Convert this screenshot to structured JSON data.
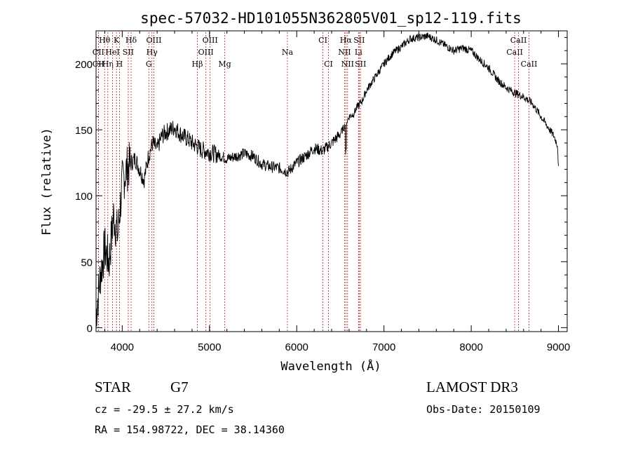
{
  "chart_data": {
    "type": "line",
    "title": "spec-57032-HD101055N362805V01_sp12-119.fits",
    "xlabel": "Wavelength (Å)",
    "ylabel": "Flux (relative)",
    "xlim": [
      3700,
      9100
    ],
    "ylim": [
      -3,
      225
    ],
    "xticks": [
      4000,
      5000,
      6000,
      7000,
      8000,
      9000
    ],
    "yticks": [
      0,
      50,
      100,
      150,
      200
    ],
    "series": [
      {
        "name": "flux",
        "color": "#000000",
        "x": [
          3700,
          3750,
          3800,
          3850,
          3900,
          3950,
          4000,
          4050,
          4100,
          4150,
          4200,
          4250,
          4300,
          4350,
          4400,
          4450,
          4500,
          4550,
          4600,
          4650,
          4700,
          4750,
          4800,
          4850,
          4900,
          4950,
          5000,
          5100,
          5200,
          5300,
          5400,
          5500,
          5600,
          5700,
          5800,
          5900,
          6000,
          6100,
          6200,
          6300,
          6400,
          6500,
          6550,
          6600,
          6650,
          6700,
          6750,
          6800,
          6900,
          7000,
          7100,
          7200,
          7300,
          7400,
          7500,
          7600,
          7700,
          7800,
          7900,
          8000,
          8100,
          8200,
          8300,
          8400,
          8500,
          8600,
          8700,
          8800,
          8900,
          8950,
          8990,
          9000
        ],
        "values": [
          10,
          40,
          60,
          50,
          85,
          70,
          110,
          120,
          125,
          128,
          120,
          112,
          130,
          140,
          135,
          145,
          148,
          150,
          152,
          148,
          145,
          143,
          140,
          138,
          135,
          134,
          133,
          131,
          128,
          130,
          132,
          130,
          124,
          122,
          121,
          118,
          125,
          130,
          136,
          134,
          140,
          147,
          153,
          160,
          162,
          168,
          172,
          180,
          190,
          200,
          208,
          213,
          219,
          220,
          221,
          218,
          214,
          210,
          212,
          210,
          203,
          197,
          188,
          182,
          178,
          175,
          170,
          160,
          150,
          145,
          138,
          120
        ]
      }
    ],
    "lines": [
      {
        "label": "Hθ",
        "x": 3798,
        "row": 0
      },
      {
        "label": "CII",
        "x": 3727,
        "row": 1
      },
      {
        "label": "CII",
        "x": 3727,
        "row": 2
      },
      {
        "label": "Hη",
        "x": 3835,
        "row": 2
      },
      {
        "label": "HeI",
        "x": 3889,
        "row": 1
      },
      {
        "label": "K",
        "x": 3934,
        "row": 0
      },
      {
        "label": "H",
        "x": 3969,
        "row": 2
      },
      {
        "label": "SII",
        "x": 4069,
        "row": 1
      },
      {
        "label": "Hδ",
        "x": 4102,
        "row": 0
      },
      {
        "label": "OIII",
        "x": 4363,
        "row": 0
      },
      {
        "label": "Hγ",
        "x": 4341,
        "row": 1
      },
      {
        "label": "G",
        "x": 4305,
        "row": 2
      },
      {
        "label": "Hβ",
        "x": 4861,
        "row": 2
      },
      {
        "label": "OIII",
        "x": 4959,
        "row": 1
      },
      {
        "label": "OIII",
        "x": 5007,
        "row": 0
      },
      {
        "label": "Mg",
        "x": 5175,
        "row": 2
      },
      {
        "label": "Na",
        "x": 5893,
        "row": 1
      },
      {
        "label": "CI",
        "x": 6300,
        "row": 0
      },
      {
        "label": "CI",
        "x": 6364,
        "row": 2
      },
      {
        "label": "NII",
        "x": 6548,
        "row": 1
      },
      {
        "label": "NII",
        "x": 6583,
        "row": 2
      },
      {
        "label": "Hα",
        "x": 6563,
        "row": 0
      },
      {
        "label": "Li",
        "x": 6708,
        "row": 1
      },
      {
        "label": "SII",
        "x": 6716,
        "row": 0
      },
      {
        "label": "SII",
        "x": 6731,
        "row": 2
      },
      {
        "label": "CaII",
        "x": 8498,
        "row": 1
      },
      {
        "label": "CaII",
        "x": 8542,
        "row": 0
      },
      {
        "label": "CaII",
        "x": 8662,
        "row": 2
      }
    ]
  },
  "info": {
    "obj_class": "STAR",
    "subclass": "G7",
    "survey": "LAMOST DR3",
    "cz": "cz = -29.5 ± 27.2 km/s",
    "obs_date": "Obs-Date: 20150109",
    "radec": "RA = 154.98722, DEC =  38.14360"
  },
  "colors": {
    "line_marker": "#b22222",
    "spectrum": "#000000"
  }
}
